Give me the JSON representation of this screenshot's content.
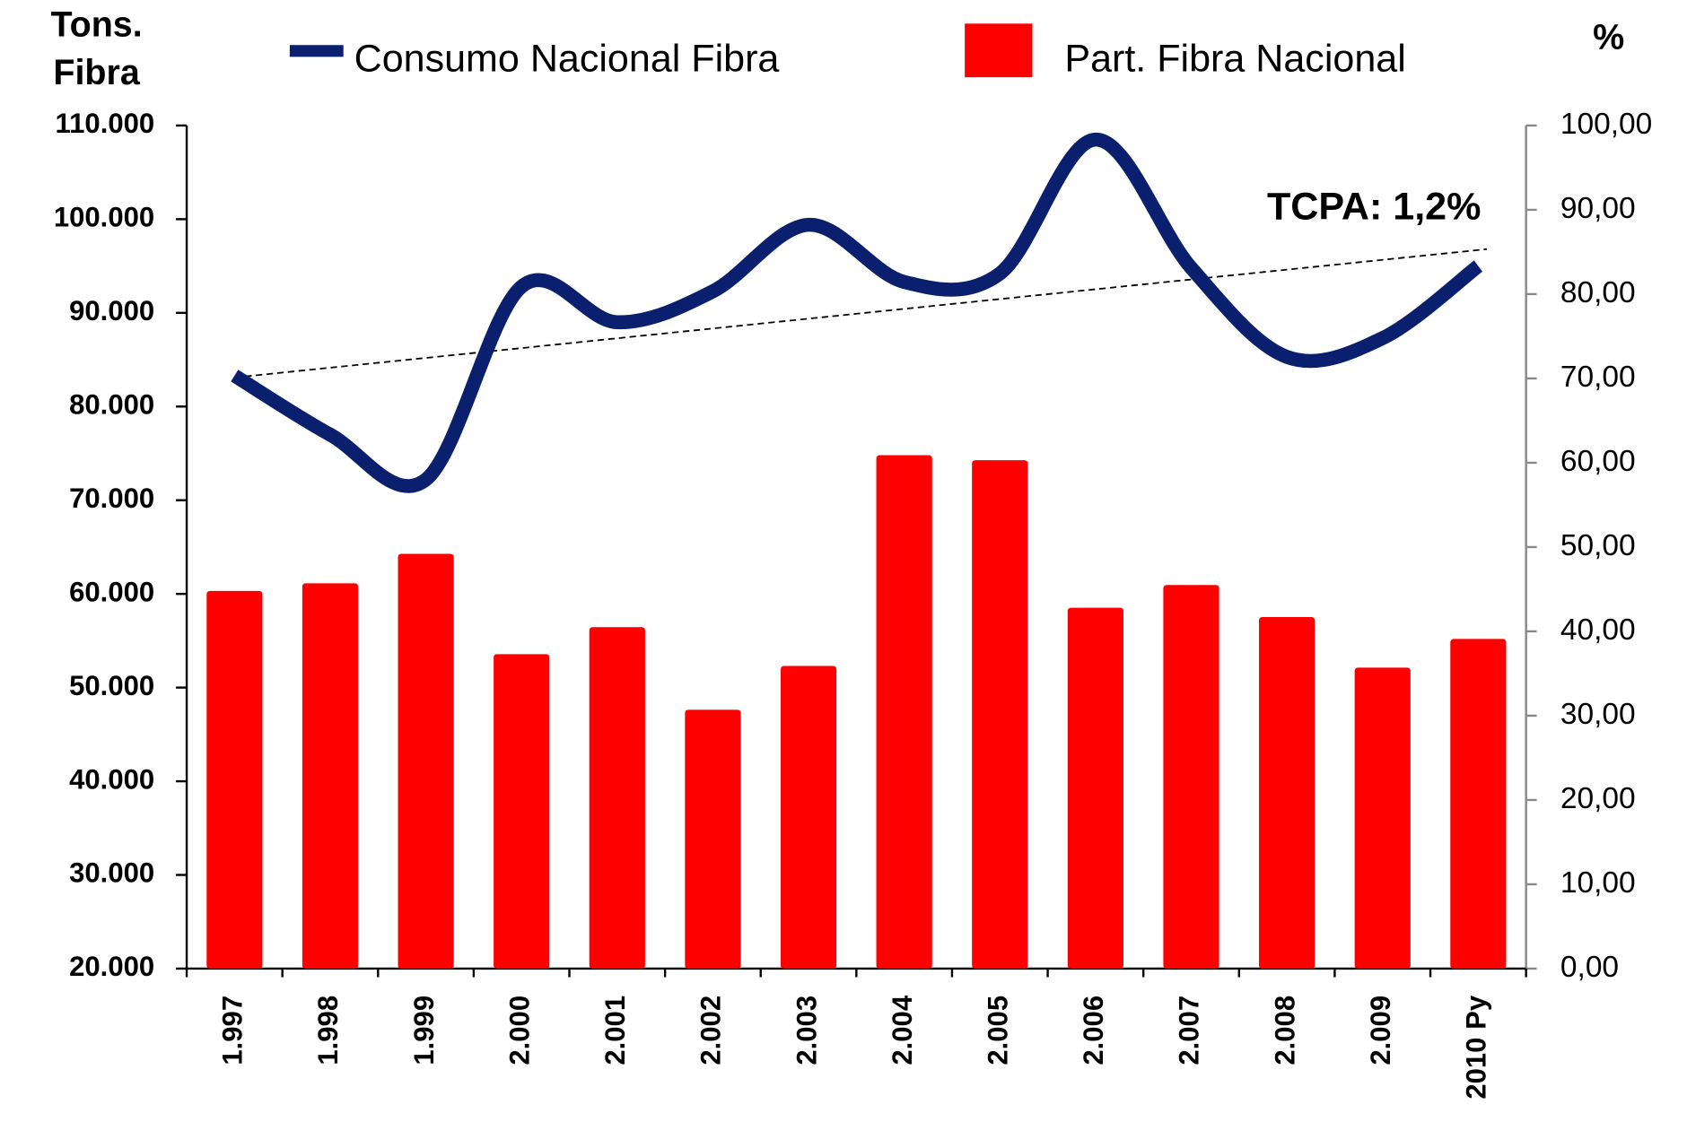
{
  "chart_data": {
    "type": "bar_line",
    "ylabel": [
      "Tons.",
      "Fibra"
    ],
    "y2label": "%",
    "annotation": "TCPA: 1,2%",
    "categories": [
      "1.997",
      "1.998",
      "1.999",
      "2.000",
      "2.001",
      "2.002",
      "2.003",
      "2.004",
      "2.005",
      "2.006",
      "2.007",
      "2.008",
      "2.009",
      "2010 Py"
    ],
    "series": [
      {
        "name": "Consumo Nacional Fibra",
        "color": "#0a1f6e",
        "type": "line",
        "axis": "y",
        "values": [
          83300,
          77000,
          72200,
          92800,
          89000,
          92300,
          99400,
          93300,
          94200,
          108500,
          94800,
          85300,
          87300,
          95000
        ]
      },
      {
        "name": "Part. Fibra Nacional",
        "color": "#ff0000",
        "type": "bar",
        "axis": "y2",
        "values": [
          44.8,
          45.7,
          49.2,
          37.3,
          40.5,
          30.7,
          35.9,
          60.9,
          60.3,
          42.8,
          45.5,
          41.7,
          35.7,
          39.1
        ]
      }
    ],
    "trend": [
      83100,
      96800
    ],
    "ylim": [
      20000,
      110000
    ],
    "yticks": [
      {
        "value": 20000,
        "label": "20.000"
      },
      {
        "value": 30000,
        "label": "30.000"
      },
      {
        "value": 40000,
        "label": "40.000"
      },
      {
        "value": 50000,
        "label": "50.000"
      },
      {
        "value": 60000,
        "label": "60.000"
      },
      {
        "value": 70000,
        "label": "70.000"
      },
      {
        "value": 80000,
        "label": "80.000"
      },
      {
        "value": 90000,
        "label": "90.000"
      },
      {
        "value": 100000,
        "label": "100.000"
      },
      {
        "value": 110000,
        "label": "110.000"
      }
    ],
    "y2lim": [
      0,
      100
    ],
    "y2ticks": [
      {
        "value": 0,
        "label": "0,00"
      },
      {
        "value": 10,
        "label": "10,00"
      },
      {
        "value": 20,
        "label": "20,00"
      },
      {
        "value": 30,
        "label": "30,00"
      },
      {
        "value": 40,
        "label": "40,00"
      },
      {
        "value": 50,
        "label": "50,00"
      },
      {
        "value": 60,
        "label": "60,00"
      },
      {
        "value": 70,
        "label": "70,00"
      },
      {
        "value": 80,
        "label": "80,00"
      },
      {
        "value": 90,
        "label": "90,00"
      },
      {
        "value": 100,
        "label": "100,00"
      }
    ]
  }
}
